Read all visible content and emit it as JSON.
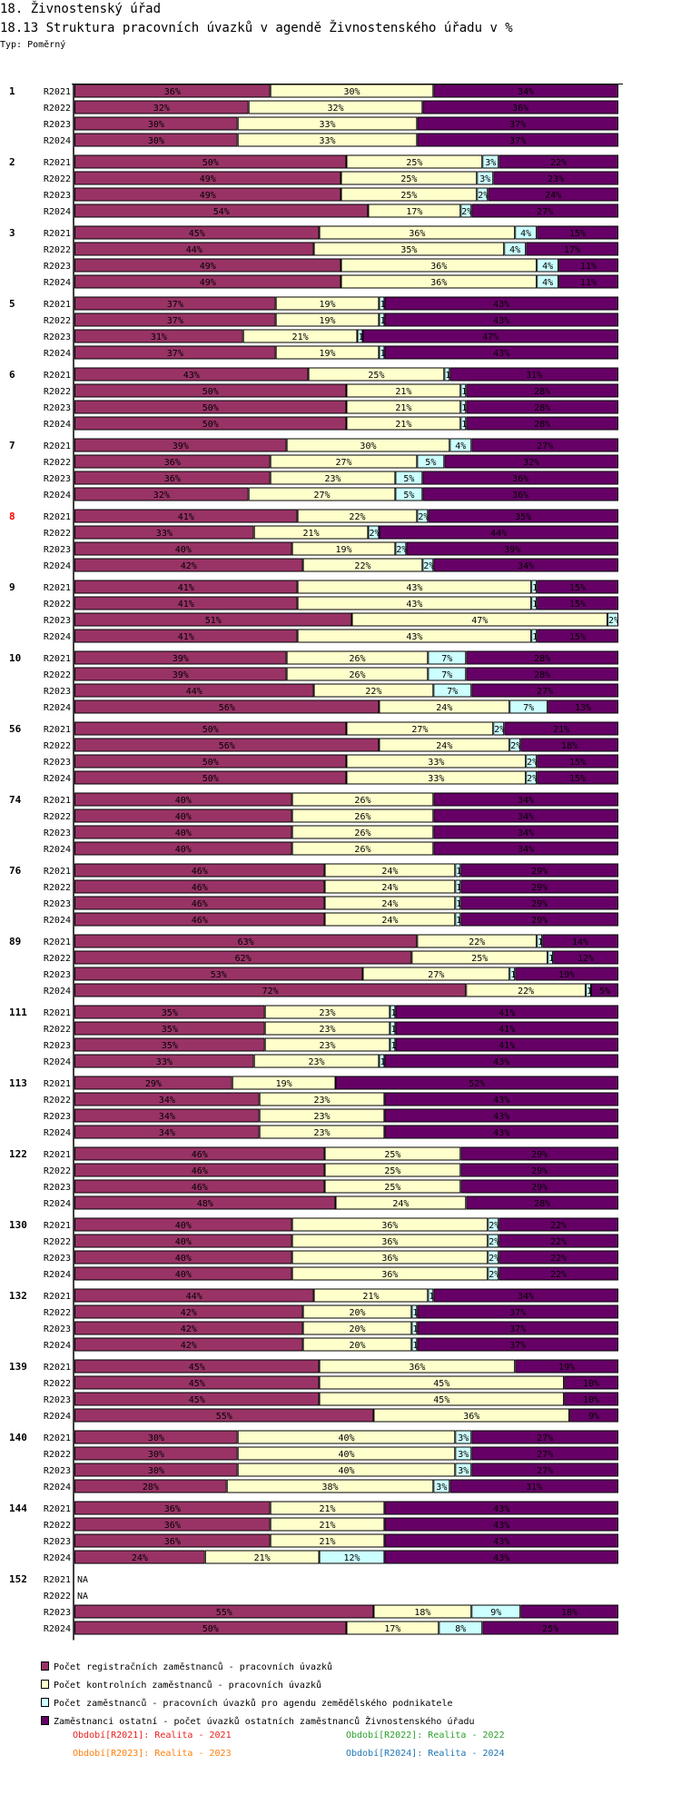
{
  "header": {
    "section": "18. Živnostenský úřad",
    "title": "18.13 Struktura pracovních úvazků v agendě Živnostenského úřadu v %",
    "type": "Typ: Poměrný"
  },
  "colors": {
    "registration": "#993366",
    "control": "#FFFFCC",
    "agriculture": "#CCFFFF",
    "other": "#660066",
    "highlight_group": "#FF0000"
  },
  "chart_data": {
    "type": "bar",
    "orientation": "horizontal",
    "stacked": "percent",
    "title": "18.13 Struktura pracovních úvazků v agendě Živnostenského úřadu v %",
    "xlim": [
      0,
      100
    ],
    "legend_position": "bottom",
    "na_label": "NA",
    "series": [
      {
        "name": "Počet registračních zaměstnanců - pracovních úvazků",
        "color": "#993366"
      },
      {
        "name": "Počet kontrolních zaměstnanců - pracovních úvazků",
        "color": "#FFFFCC"
      },
      {
        "name": "Počet zaměstnanců - pracovních úvazků pro agendu zemědělského podnikatele",
        "color": "#CCFFFF"
      },
      {
        "name": "Zaměstnanci ostatní - počet úvazků ostatních zaměstnanců Živnostenského úřadu",
        "color": "#660066"
      }
    ],
    "periods": [
      "R2021",
      "R2022",
      "R2023",
      "R2024"
    ],
    "period_legend": [
      {
        "text": "Období[R2021]: Realita - 2021",
        "color": "#E8201E"
      },
      {
        "text": "Období[R2022]: Realita - 2022",
        "color": "#2CA02C"
      },
      {
        "text": "Období[R2023]: Realita - 2023",
        "color": "#FF7F0E"
      },
      {
        "text": "Období[R2024]: Realita - 2024",
        "color": "#1F77B4"
      }
    ],
    "groups": [
      {
        "label": "1",
        "values": [
          [
            36,
            30,
            0,
            34
          ],
          [
            32,
            32,
            0,
            36
          ],
          [
            30,
            33,
            0,
            37
          ],
          [
            30,
            33,
            0,
            37
          ]
        ]
      },
      {
        "label": "2",
        "values": [
          [
            50,
            25,
            3,
            22
          ],
          [
            49,
            25,
            3,
            23
          ],
          [
            49,
            25,
            2,
            24
          ],
          [
            54,
            17,
            2,
            27
          ]
        ]
      },
      {
        "label": "3",
        "values": [
          [
            45,
            36,
            4,
            15
          ],
          [
            44,
            35,
            4,
            17
          ],
          [
            49,
            36,
            4,
            11
          ],
          [
            49,
            36,
            4,
            11
          ]
        ]
      },
      {
        "label": "5",
        "values": [
          [
            37,
            19,
            1,
            43
          ],
          [
            37,
            19,
            1,
            43
          ],
          [
            31,
            21,
            1,
            47
          ],
          [
            37,
            19,
            1,
            43
          ]
        ]
      },
      {
        "label": "6",
        "values": [
          [
            43,
            25,
            1,
            31
          ],
          [
            50,
            21,
            1,
            28
          ],
          [
            50,
            21,
            1,
            28
          ],
          [
            50,
            21,
            1,
            28
          ]
        ]
      },
      {
        "label": "7",
        "values": [
          [
            39,
            30,
            4,
            27
          ],
          [
            36,
            27,
            5,
            32
          ],
          [
            36,
            23,
            5,
            36
          ],
          [
            32,
            27,
            5,
            36
          ]
        ]
      },
      {
        "label": "8",
        "highlight": true,
        "values": [
          [
            41,
            22,
            2,
            35
          ],
          [
            33,
            21,
            2,
            44
          ],
          [
            40,
            19,
            2,
            39
          ],
          [
            42,
            22,
            2,
            34
          ]
        ]
      },
      {
        "label": "9",
        "values": [
          [
            41,
            43,
            1,
            15
          ],
          [
            41,
            43,
            1,
            15
          ],
          [
            51,
            47,
            2,
            0
          ],
          [
            41,
            43,
            1,
            15
          ]
        ]
      },
      {
        "label": "10",
        "values": [
          [
            39,
            26,
            7,
            28
          ],
          [
            39,
            26,
            7,
            28
          ],
          [
            44,
            22,
            7,
            27
          ],
          [
            56,
            24,
            7,
            13
          ]
        ]
      },
      {
        "label": "56",
        "values": [
          [
            50,
            27,
            2,
            21
          ],
          [
            56,
            24,
            2,
            18
          ],
          [
            50,
            33,
            2,
            15
          ],
          [
            50,
            33,
            2,
            15
          ]
        ]
      },
      {
        "label": "74",
        "values": [
          [
            40,
            26,
            0,
            34
          ],
          [
            40,
            26,
            0,
            34
          ],
          [
            40,
            26,
            0,
            34
          ],
          [
            40,
            26,
            0,
            34
          ]
        ]
      },
      {
        "label": "76",
        "values": [
          [
            46,
            24,
            1,
            29
          ],
          [
            46,
            24,
            1,
            29
          ],
          [
            46,
            24,
            1,
            29
          ],
          [
            46,
            24,
            1,
            29
          ]
        ]
      },
      {
        "label": "89",
        "values": [
          [
            63,
            22,
            1,
            14
          ],
          [
            62,
            25,
            1,
            12
          ],
          [
            53,
            27,
            1,
            19
          ],
          [
            72,
            22,
            1,
            5
          ]
        ]
      },
      {
        "label": "111",
        "values": [
          [
            35,
            23,
            1,
            41
          ],
          [
            35,
            23,
            1,
            41
          ],
          [
            35,
            23,
            1,
            41
          ],
          [
            33,
            23,
            1,
            43
          ]
        ]
      },
      {
        "label": "113",
        "values": [
          [
            29,
            19,
            0,
            52
          ],
          [
            34,
            23,
            0,
            43
          ],
          [
            34,
            23,
            0,
            43
          ],
          [
            34,
            23,
            0,
            43
          ]
        ]
      },
      {
        "label": "122",
        "values": [
          [
            46,
            25,
            0,
            29
          ],
          [
            46,
            25,
            0,
            29
          ],
          [
            46,
            25,
            0,
            29
          ],
          [
            48,
            24,
            0,
            28
          ]
        ]
      },
      {
        "label": "130",
        "values": [
          [
            40,
            36,
            2,
            22
          ],
          [
            40,
            36,
            2,
            22
          ],
          [
            40,
            36,
            2,
            22
          ],
          [
            40,
            36,
            2,
            22
          ]
        ]
      },
      {
        "label": "132",
        "values": [
          [
            44,
            21,
            1,
            34
          ],
          [
            42,
            20,
            1,
            37
          ],
          [
            42,
            20,
            1,
            37
          ],
          [
            42,
            20,
            1,
            37
          ]
        ]
      },
      {
        "label": "139",
        "values": [
          [
            45,
            36,
            0,
            19
          ],
          [
            45,
            45,
            0,
            10
          ],
          [
            45,
            45,
            0,
            10
          ],
          [
            55,
            36,
            0,
            9
          ]
        ]
      },
      {
        "label": "140",
        "values": [
          [
            30,
            40,
            3,
            27
          ],
          [
            30,
            40,
            3,
            27
          ],
          [
            30,
            40,
            3,
            27
          ],
          [
            28,
            38,
            3,
            31
          ]
        ]
      },
      {
        "label": "144",
        "values": [
          [
            36,
            21,
            0,
            43
          ],
          [
            36,
            21,
            0,
            43
          ],
          [
            36,
            21,
            0,
            43
          ],
          [
            24,
            21,
            12,
            43
          ]
        ]
      },
      {
        "label": "152",
        "values": [
          null,
          null,
          [
            55,
            18,
            9,
            18
          ],
          [
            50,
            17,
            8,
            25
          ]
        ]
      }
    ]
  }
}
